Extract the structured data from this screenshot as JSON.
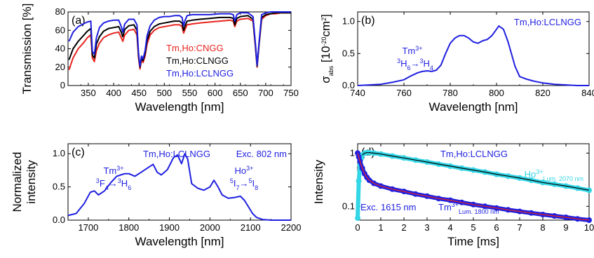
{
  "chart_data": [
    {
      "panel_label": "(a)",
      "type": "line",
      "xlabel": "Wavelength [nm]",
      "ylabel": "Transmission [%]",
      "xlim": [
        310,
        750
      ],
      "ylim": [
        0,
        80
      ],
      "xticks": [
        350,
        400,
        450,
        500,
        550,
        600,
        650,
        700,
        750
      ],
      "yticks": [
        0,
        20,
        40,
        60,
        80
      ],
      "colors": {
        "cngg": "#e8251f",
        "clngg": "#000000",
        "lclngg": "#1f1fe0"
      },
      "series": [
        {
          "name": "Tm,Ho:CNGG",
          "x": [
            312,
            320,
            330,
            340,
            348,
            355,
            358,
            362,
            366,
            372,
            380,
            390,
            400,
            410,
            415,
            418,
            422,
            430,
            440,
            446,
            449,
            452,
            455,
            458,
            462,
            466,
            472,
            480,
            490,
            500,
            510,
            520,
            530,
            535,
            538,
            541,
            545,
            555,
            570,
            590,
            610,
            630,
            636,
            639,
            643,
            650,
            665,
            675,
            680,
            683,
            687,
            692,
            700,
            710,
            720,
            730,
            750
          ],
          "y": [
            17,
            30,
            40,
            46,
            52,
            55,
            30,
            26,
            38,
            46,
            52,
            55,
            57,
            58,
            52,
            48,
            55,
            60,
            61,
            55,
            30,
            18,
            28,
            25,
            32,
            45,
            55,
            60,
            63,
            64,
            65,
            66,
            66,
            64,
            57,
            61,
            66,
            67,
            68,
            69,
            70,
            71,
            70,
            64,
            70,
            72,
            73,
            70,
            40,
            20,
            45,
            72,
            76,
            78,
            78,
            79,
            79
          ]
        },
        {
          "name": "Tm,Ho:CLNGG",
          "x": [
            312,
            320,
            330,
            340,
            348,
            355,
            358,
            362,
            366,
            372,
            380,
            390,
            400,
            410,
            415,
            418,
            422,
            430,
            440,
            446,
            449,
            452,
            455,
            458,
            462,
            466,
            472,
            480,
            490,
            500,
            510,
            520,
            530,
            535,
            538,
            541,
            545,
            555,
            570,
            590,
            610,
            630,
            636,
            639,
            643,
            650,
            665,
            675,
            680,
            683,
            687,
            692,
            700,
            710,
            720,
            730,
            750
          ],
          "y": [
            28,
            40,
            48,
            54,
            59,
            62,
            33,
            30,
            45,
            53,
            59,
            62,
            63,
            64,
            58,
            53,
            61,
            65,
            66,
            60,
            33,
            20,
            30,
            27,
            35,
            49,
            59,
            64,
            67,
            68,
            69,
            70,
            70,
            68,
            60,
            65,
            70,
            71,
            72,
            73,
            74,
            74,
            73,
            66,
            73,
            75,
            76,
            72,
            42,
            21,
            46,
            74,
            77,
            78,
            79,
            79,
            79
          ]
        },
        {
          "name": "Tm,Ho:LCLNGG",
          "x": [
            312,
            320,
            330,
            340,
            348,
            355,
            358,
            362,
            366,
            372,
            380,
            390,
            400,
            410,
            415,
            418,
            422,
            430,
            440,
            446,
            449,
            452,
            455,
            458,
            462,
            466,
            472,
            480,
            490,
            500,
            510,
            520,
            530,
            535,
            538,
            541,
            545,
            555,
            570,
            590,
            610,
            630,
            636,
            639,
            643,
            650,
            665,
            675,
            680,
            683,
            687,
            692,
            700,
            710,
            720,
            730,
            750
          ],
          "y": [
            48,
            58,
            64,
            67,
            69,
            70,
            37,
            34,
            52,
            63,
            68,
            70,
            71,
            71,
            64,
            58,
            67,
            72,
            72,
            66,
            36,
            21,
            32,
            29,
            38,
            54,
            65,
            71,
            74,
            75,
            75,
            76,
            76,
            74,
            65,
            71,
            76,
            77,
            77,
            77,
            78,
            78,
            77,
            70,
            77,
            79,
            79,
            75,
            44,
            22,
            48,
            77,
            79,
            80,
            80,
            80,
            80
          ]
        }
      ]
    },
    {
      "panel_label": "(b)",
      "type": "line",
      "xlabel": "Wavelength [nm]",
      "ylabel_main": "σ",
      "ylabel_sub": "abs",
      "ylabel_unit": "[10",
      "ylabel_exp": "-20",
      "ylabel_unit2": "cm",
      "ylabel_exp2": "2",
      "ylabel_close": "]",
      "xlim": [
        740,
        840
      ],
      "ylim": [
        0,
        1.15
      ],
      "xticks": [
        740,
        760,
        780,
        800,
        820,
        840
      ],
      "yticks": [
        0.0,
        0.5,
        1.0
      ],
      "ytick_labels": [
        "0.0",
        "0.5",
        "1.0"
      ],
      "legend": "Tm,Ho:LCLNGG",
      "annotation_ion": "Tm",
      "annotation_ion_charge": "3+",
      "annotation_transition": {
        "a": "3",
        "b": "H",
        "c": "6",
        "arrow": "→",
        "d": "3",
        "e": "H",
        "f": "4"
      },
      "color": "#1f1fe0",
      "series": [
        {
          "name": "Tm,Ho:LCLNGG",
          "x": [
            740,
            750,
            755,
            760,
            763,
            766,
            768,
            770,
            772,
            774,
            776,
            778,
            780,
            782,
            784,
            786,
            788,
            790,
            792,
            794,
            796,
            798,
            800,
            801,
            803,
            805,
            808,
            810,
            813,
            816,
            820,
            825,
            830,
            835,
            840
          ],
          "y": [
            0.0,
            0.02,
            0.05,
            0.09,
            0.15,
            0.2,
            0.22,
            0.23,
            0.22,
            0.24,
            0.32,
            0.5,
            0.66,
            0.74,
            0.78,
            0.78,
            0.74,
            0.68,
            0.66,
            0.7,
            0.72,
            0.78,
            0.88,
            0.93,
            0.88,
            0.68,
            0.3,
            0.14,
            0.1,
            0.07,
            0.04,
            0.02,
            0.01,
            0.0,
            0.0
          ]
        }
      ]
    },
    {
      "panel_label": "(c)",
      "type": "line",
      "xlabel": "Wavelength [nm]",
      "ylabel_line1": "Normalized",
      "ylabel_line2": "intensity",
      "xlim": [
        1650,
        2200
      ],
      "ylim": [
        0,
        1.15
      ],
      "xticks": [
        1700,
        1800,
        1900,
        2000,
        2100,
        2200
      ],
      "yticks": [
        0.0,
        0.5,
        1.0
      ],
      "ytick_labels": [
        "0.0",
        "0.5",
        "1.0"
      ],
      "legend": "Tm,Ho:LCLNGG",
      "excitation": "Exc. 802 nm",
      "annotation_tm_ion": "Tm",
      "annotation_tm_charge": "3+",
      "annotation_tm_transition": {
        "a": "3",
        "b": "F",
        "c": "4",
        "arrow": "→",
        "d": "3",
        "e": "H",
        "f": "6"
      },
      "annotation_ho_ion": "Ho",
      "annotation_ho_charge": "3+",
      "annotation_ho_transition": {
        "a": "5",
        "b": "I",
        "c": "7",
        "arrow": "→",
        "d": "5",
        "e": "I",
        "f": "8"
      },
      "color": "#1f1fe0",
      "series": [
        {
          "name": "Tm,Ho:LCLNGG",
          "x": [
            1650,
            1670,
            1690,
            1705,
            1715,
            1725,
            1740,
            1755,
            1770,
            1780,
            1790,
            1800,
            1815,
            1830,
            1845,
            1860,
            1870,
            1880,
            1895,
            1910,
            1920,
            1930,
            1938,
            1945,
            1955,
            1970,
            1985,
            2000,
            2010,
            2020,
            2030,
            2045,
            2060,
            2075,
            2085,
            2095,
            2105,
            2115,
            2130,
            2150,
            2200
          ],
          "y": [
            0.07,
            0.1,
            0.25,
            0.42,
            0.44,
            0.38,
            0.44,
            0.56,
            0.66,
            0.68,
            0.7,
            0.7,
            0.66,
            0.72,
            0.78,
            0.84,
            0.72,
            0.68,
            0.76,
            0.94,
            0.98,
            0.85,
            1.0,
            0.92,
            0.55,
            0.48,
            0.45,
            0.5,
            0.6,
            0.5,
            0.38,
            0.33,
            0.34,
            0.36,
            0.3,
            0.2,
            0.1,
            0.04,
            0.01,
            0.0,
            0.0
          ]
        }
      ]
    },
    {
      "panel_label": "(d)",
      "type": "scatter",
      "xlabel": "Time [ms]",
      "ylabel": "Intensity",
      "yscale": "log",
      "xlim": [
        0,
        10
      ],
      "ylim": [
        0.055,
        1.5
      ],
      "xticks": [
        0,
        1,
        2,
        3,
        4,
        5,
        6,
        7,
        8,
        9,
        10
      ],
      "yticks": [
        0.1,
        1
      ],
      "ytick_labels": [
        "0.1",
        "1"
      ],
      "legend": "Tm,Ho:LCLNGG",
      "excitation": "Exc. 1615 nm",
      "annotation_ho_ion": "Ho",
      "annotation_ho_charge": "3+",
      "annotation_ho_sub": "Lum. 2070 nm",
      "annotation_tm_ion": "Tm",
      "annotation_tm_charge": "3+",
      "annotation_tm_sub": "Lum. 1800 nm",
      "colors": {
        "ho": "#33d6e6",
        "tm": "#1f1fe0",
        "fit_tm": "#e8251f",
        "fit_ho": "#000000"
      },
      "series": [
        {
          "name": "Ho",
          "x": [
            0.0,
            0.05,
            0.1,
            0.15,
            0.2,
            0.3,
            0.4,
            0.5,
            0.7,
            1.0,
            1.5,
            2.0,
            2.5,
            3.0,
            3.5,
            4.0,
            4.5,
            5.0,
            5.5,
            6.0,
            6.5,
            7.0,
            7.5,
            8.0,
            8.5,
            9.0,
            9.5,
            10.0
          ],
          "y": [
            0.06,
            0.3,
            0.6,
            0.8,
            0.92,
            1.0,
            1.02,
            1.02,
            1.0,
            0.96,
            0.88,
            0.81,
            0.74,
            0.68,
            0.62,
            0.57,
            0.52,
            0.48,
            0.44,
            0.4,
            0.37,
            0.34,
            0.31,
            0.28,
            0.26,
            0.24,
            0.22,
            0.2
          ]
        },
        {
          "name": "Tm",
          "x": [
            0.0,
            0.05,
            0.1,
            0.2,
            0.3,
            0.4,
            0.5,
            0.7,
            1.0,
            1.5,
            2.0,
            2.5,
            3.0,
            3.5,
            4.0,
            4.5,
            5.0,
            5.5,
            6.0,
            6.5,
            7.0,
            7.5,
            8.0,
            8.5,
            9.0,
            9.5,
            10.0
          ],
          "y": [
            1.0,
            0.85,
            0.7,
            0.52,
            0.41,
            0.35,
            0.31,
            0.27,
            0.24,
            0.21,
            0.19,
            0.17,
            0.155,
            0.14,
            0.13,
            0.118,
            0.108,
            0.1,
            0.093,
            0.086,
            0.08,
            0.075,
            0.07,
            0.066,
            0.062,
            0.058,
            0.055
          ]
        }
      ]
    }
  ]
}
